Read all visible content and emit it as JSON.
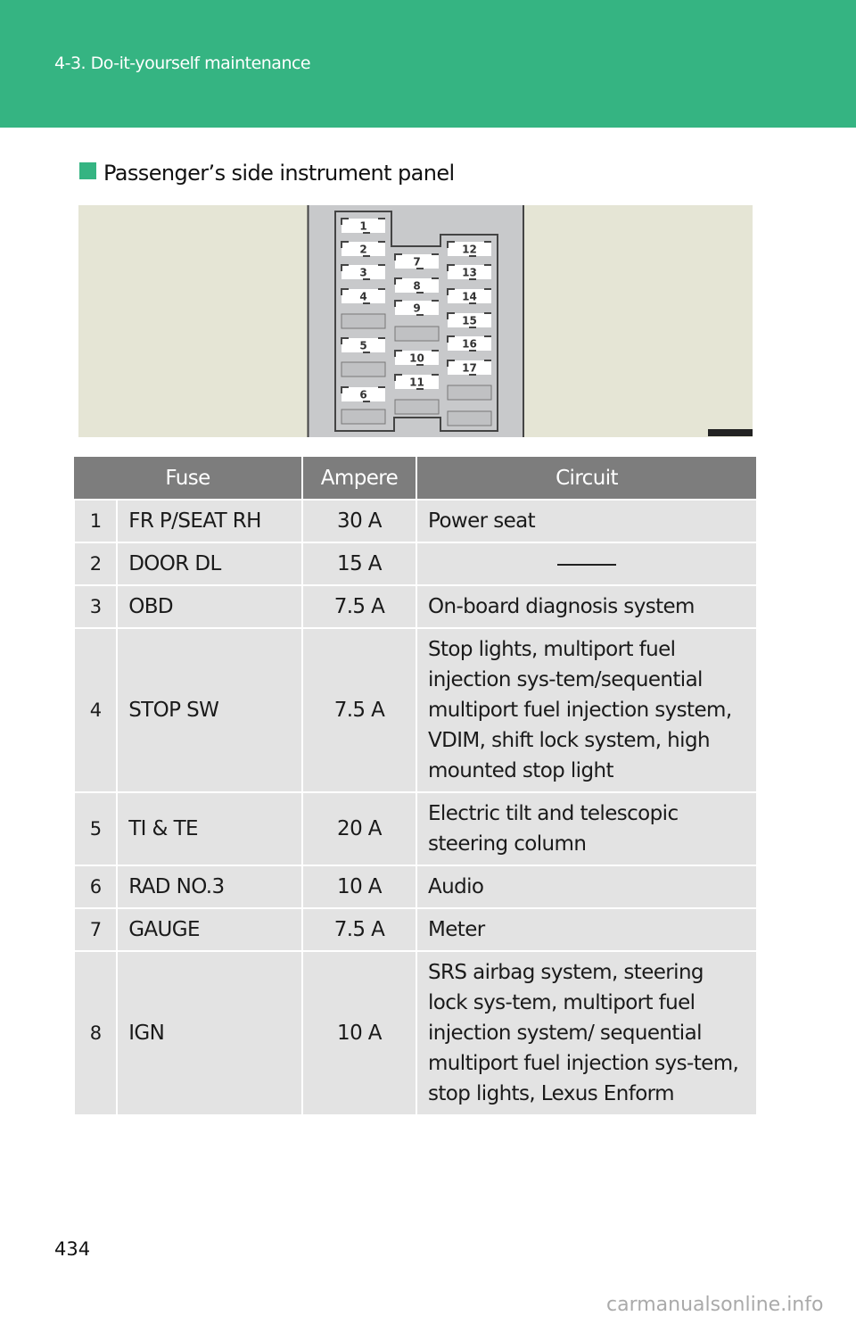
{
  "header": {
    "section": "4-3. Do-it-yourself maintenance"
  },
  "title": "Passenger’s side instrument panel",
  "diagram": {
    "fuse_numbers": [
      "1",
      "2",
      "3",
      "4",
      "5",
      "6",
      "7",
      "8",
      "9",
      "10",
      "11",
      "12",
      "13",
      "14",
      "15",
      "16",
      "17"
    ]
  },
  "table": {
    "headers": [
      "Fuse",
      "Ampere",
      "Circuit"
    ],
    "rows": [
      {
        "no": "1",
        "name": "FR P/SEAT RH",
        "amp": "30 A",
        "circuit": "Power seat"
      },
      {
        "no": "2",
        "name": "DOOR DL",
        "amp": "15 A",
        "circuit": ""
      },
      {
        "no": "3",
        "name": "OBD",
        "amp": "7.5 A",
        "circuit": "On-board diagnosis system"
      },
      {
        "no": "4",
        "name": "STOP SW",
        "amp": "7.5 A",
        "circuit": "Stop lights, multiport fuel injection sys-tem/sequential multiport fuel injection system, VDIM, shift lock system, high mounted stop light"
      },
      {
        "no": "5",
        "name": "TI & TE",
        "amp": "20 A",
        "circuit": "Electric tilt and telescopic steering column"
      },
      {
        "no": "6",
        "name": "RAD NO.3",
        "amp": "10 A",
        "circuit": "Audio"
      },
      {
        "no": "7",
        "name": "GAUGE",
        "amp": "7.5 A",
        "circuit": "Meter"
      },
      {
        "no": "8",
        "name": "IGN",
        "amp": "10 A",
        "circuit": "SRS airbag system, steering lock sys-tem, multiport fuel injection system/ sequential multiport fuel injection sys-tem, stop lights, Lexus Enform"
      }
    ]
  },
  "page_number": "434",
  "watermark": "carmanualsonline.info",
  "colors": {
    "accent": "#35b482",
    "table_header": "#7d7d7d",
    "table_row": "#e3e3e3"
  }
}
